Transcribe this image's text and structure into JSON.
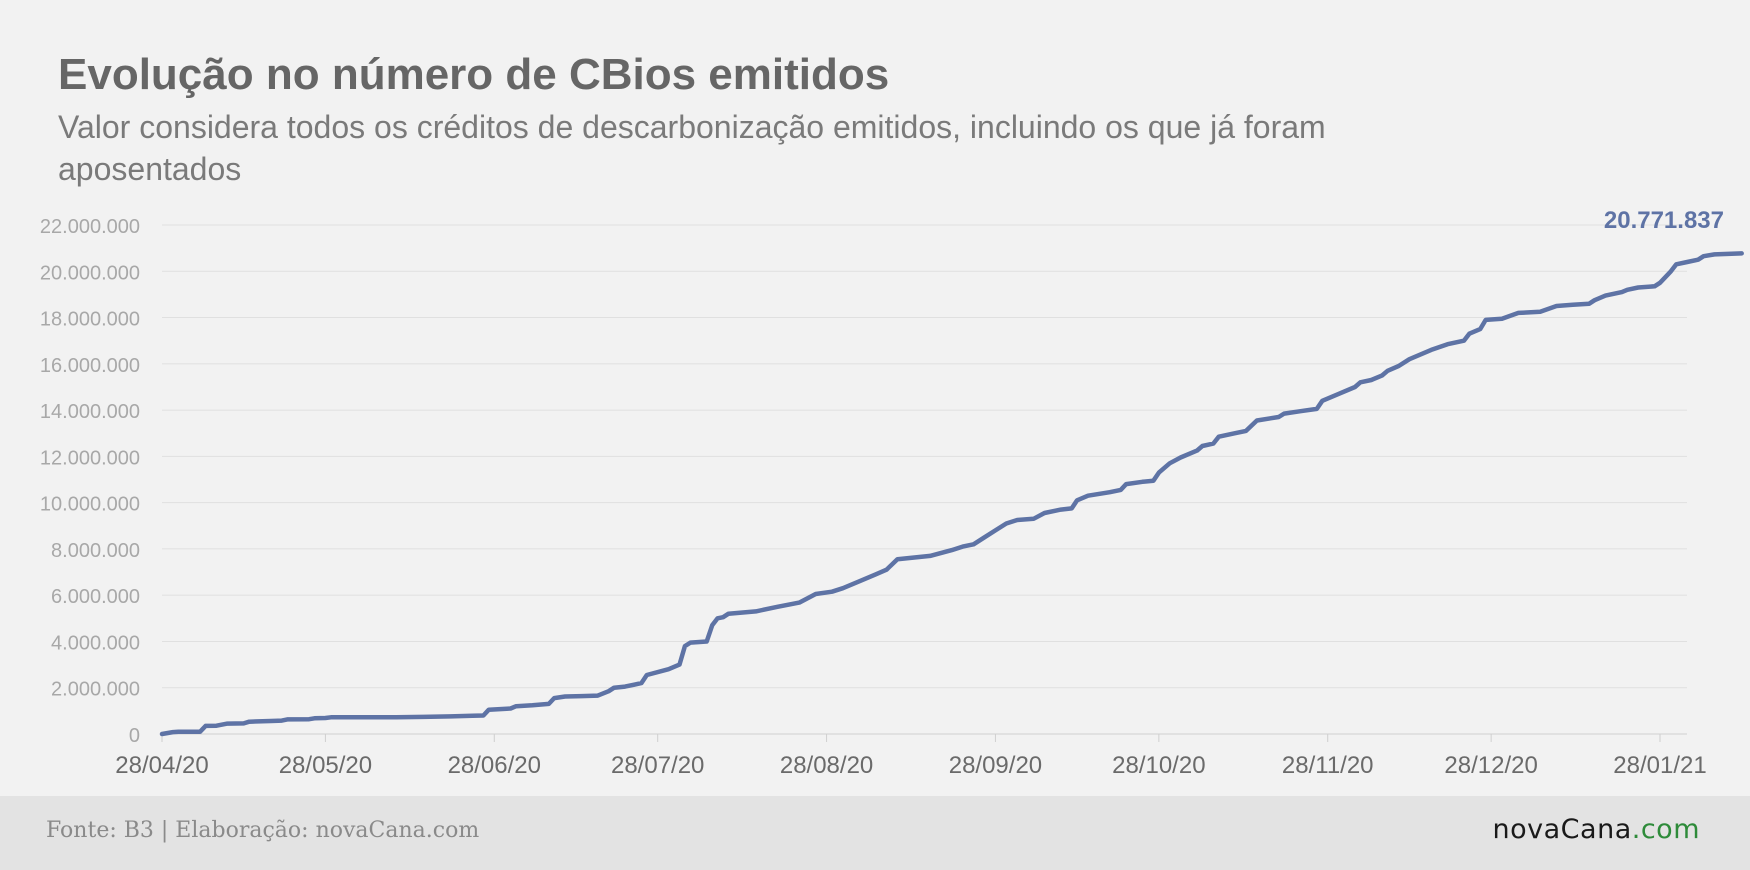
{
  "chart_data": {
    "type": "line",
    "title": "Evolução no número de CBios emitidos",
    "subtitle": "Valor considera todos os créditos de descarbonização emitidos, incluindo os que já foram aposentados",
    "xlabel": "",
    "ylabel": "",
    "ylim": [
      0,
      22000000
    ],
    "yticks": [
      0,
      2000000,
      4000000,
      6000000,
      8000000,
      10000000,
      12000000,
      14000000,
      16000000,
      18000000,
      20000000,
      22000000
    ],
    "ytick_labels": [
      "0",
      "2.000.000",
      "4.000.000",
      "6.000.000",
      "8.000.000",
      "10.000.000",
      "12.000.000",
      "14.000.000",
      "16.000.000",
      "18.000.000",
      "20.000.000",
      "22.000.000"
    ],
    "xlim": [
      "2020-04-28",
      "2021-02-04"
    ],
    "xticks": [
      "2020-04-28",
      "2020-05-28",
      "2020-06-28",
      "2020-07-28",
      "2020-08-28",
      "2020-09-28",
      "2020-10-28",
      "2020-11-28",
      "2020-12-28",
      "2021-01-28"
    ],
    "xtick_labels": [
      "28/04/20",
      "28/05/20",
      "28/06/20",
      "28/07/20",
      "28/08/20",
      "28/09/20",
      "28/10/20",
      "28/11/20",
      "28/12/20",
      "28/01/21"
    ],
    "grid": true,
    "line_color": "#5e73a5",
    "end_label": "20.771.837",
    "series": [
      {
        "points": [
          [
            "2020-04-28",
            0
          ],
          [
            "2020-04-30",
            80000
          ],
          [
            "2020-05-01",
            100000
          ],
          [
            "2020-05-05",
            100000
          ],
          [
            "2020-05-06",
            350000
          ],
          [
            "2020-05-08",
            360000
          ],
          [
            "2020-05-10",
            450000
          ],
          [
            "2020-05-13",
            460000
          ],
          [
            "2020-05-14",
            530000
          ],
          [
            "2020-05-18",
            560000
          ],
          [
            "2020-05-20",
            580000
          ],
          [
            "2020-05-21",
            630000
          ],
          [
            "2020-05-25",
            640000
          ],
          [
            "2020-05-26",
            680000
          ],
          [
            "2020-05-28",
            690000
          ],
          [
            "2020-05-29",
            720000
          ],
          [
            "2020-06-05",
            720000
          ],
          [
            "2020-06-10",
            725000
          ],
          [
            "2020-06-15",
            740000
          ],
          [
            "2020-06-20",
            760000
          ],
          [
            "2020-06-24",
            790000
          ],
          [
            "2020-06-26",
            800000
          ],
          [
            "2020-06-27",
            1050000
          ],
          [
            "2020-07-01",
            1100000
          ],
          [
            "2020-07-02",
            1200000
          ],
          [
            "2020-07-05",
            1240000
          ],
          [
            "2020-07-08",
            1300000
          ],
          [
            "2020-07-09",
            1550000
          ],
          [
            "2020-07-11",
            1620000
          ],
          [
            "2020-07-14",
            1640000
          ],
          [
            "2020-07-17",
            1660000
          ],
          [
            "2020-07-19",
            1850000
          ],
          [
            "2020-07-20",
            2000000
          ],
          [
            "2020-07-22",
            2050000
          ],
          [
            "2020-07-24",
            2150000
          ],
          [
            "2020-07-25",
            2200000
          ],
          [
            "2020-07-26",
            2550000
          ],
          [
            "2020-07-30",
            2800000
          ],
          [
            "2020-08-01",
            3000000
          ],
          [
            "2020-08-02",
            3800000
          ],
          [
            "2020-08-03",
            3950000
          ],
          [
            "2020-08-06",
            4000000
          ],
          [
            "2020-08-07",
            4700000
          ],
          [
            "2020-08-08",
            5000000
          ],
          [
            "2020-08-09",
            5050000
          ],
          [
            "2020-08-10",
            5200000
          ],
          [
            "2020-08-15",
            5300000
          ],
          [
            "2020-08-19",
            5500000
          ],
          [
            "2020-08-23",
            5680000
          ],
          [
            "2020-08-26",
            6050000
          ],
          [
            "2020-08-29",
            6150000
          ],
          [
            "2020-08-31",
            6300000
          ],
          [
            "2020-09-03",
            6600000
          ],
          [
            "2020-09-06",
            6900000
          ],
          [
            "2020-09-08",
            7100000
          ],
          [
            "2020-09-10",
            7550000
          ],
          [
            "2020-09-16",
            7700000
          ],
          [
            "2020-09-20",
            7950000
          ],
          [
            "2020-09-22",
            8100000
          ],
          [
            "2020-09-24",
            8200000
          ],
          [
            "2020-09-26",
            8500000
          ],
          [
            "2020-09-28",
            8800000
          ],
          [
            "2020-09-30",
            9100000
          ],
          [
            "2020-10-02",
            9250000
          ],
          [
            "2020-10-05",
            9300000
          ],
          [
            "2020-10-07",
            9550000
          ],
          [
            "2020-10-10",
            9700000
          ],
          [
            "2020-10-12",
            9750000
          ],
          [
            "2020-10-13",
            10100000
          ],
          [
            "2020-10-15",
            10300000
          ],
          [
            "2020-10-19",
            10450000
          ],
          [
            "2020-10-21",
            10550000
          ],
          [
            "2020-10-22",
            10800000
          ],
          [
            "2020-10-25",
            10900000
          ],
          [
            "2020-10-27",
            10950000
          ],
          [
            "2020-10-28",
            11300000
          ],
          [
            "2020-10-30",
            11700000
          ],
          [
            "2020-11-01",
            11950000
          ],
          [
            "2020-11-04",
            12250000
          ],
          [
            "2020-11-05",
            12450000
          ],
          [
            "2020-11-07",
            12550000
          ],
          [
            "2020-11-08",
            12850000
          ],
          [
            "2020-11-11",
            13000000
          ],
          [
            "2020-11-13",
            13100000
          ],
          [
            "2020-11-15",
            13550000
          ],
          [
            "2020-11-19",
            13700000
          ],
          [
            "2020-11-20",
            13850000
          ],
          [
            "2020-11-23",
            13950000
          ],
          [
            "2020-11-26",
            14050000
          ],
          [
            "2020-11-27",
            14400000
          ],
          [
            "2020-11-30",
            14700000
          ],
          [
            "2020-12-03",
            15000000
          ],
          [
            "2020-12-04",
            15200000
          ],
          [
            "2020-12-06",
            15300000
          ],
          [
            "2020-12-08",
            15500000
          ],
          [
            "2020-12-09",
            15700000
          ],
          [
            "2020-12-11",
            15900000
          ],
          [
            "2020-12-13",
            16200000
          ],
          [
            "2020-12-17",
            16600000
          ],
          [
            "2020-12-20",
            16850000
          ],
          [
            "2020-12-23",
            17000000
          ],
          [
            "2020-12-24",
            17300000
          ],
          [
            "2020-12-26",
            17500000
          ],
          [
            "2020-12-27",
            17900000
          ],
          [
            "2020-12-30",
            17950000
          ],
          [
            "2021-01-02",
            18200000
          ],
          [
            "2021-01-06",
            18250000
          ],
          [
            "2021-01-09",
            18500000
          ],
          [
            "2021-01-12",
            18550000
          ],
          [
            "2021-01-15",
            18600000
          ],
          [
            "2021-01-16",
            18750000
          ],
          [
            "2021-01-18",
            18950000
          ],
          [
            "2021-01-21",
            19100000
          ],
          [
            "2021-01-22",
            19200000
          ],
          [
            "2021-01-24",
            19300000
          ],
          [
            "2021-01-27",
            19350000
          ],
          [
            "2021-01-28",
            19500000
          ],
          [
            "2021-01-30",
            20000000
          ],
          [
            "2021-01-31",
            20300000
          ],
          [
            "2021-02-02",
            20400000
          ],
          [
            "2021-02-04",
            20500000
          ],
          [
            "2021-02-05",
            20650000
          ],
          [
            "2021-02-07",
            20730000
          ],
          [
            "2021-02-12",
            20771837
          ]
        ]
      }
    ]
  },
  "footer": {
    "source": "Fonte: B3 | Elaboração: novaCana.com",
    "logo_main": "novaCana",
    "logo_suffix": ".com"
  }
}
